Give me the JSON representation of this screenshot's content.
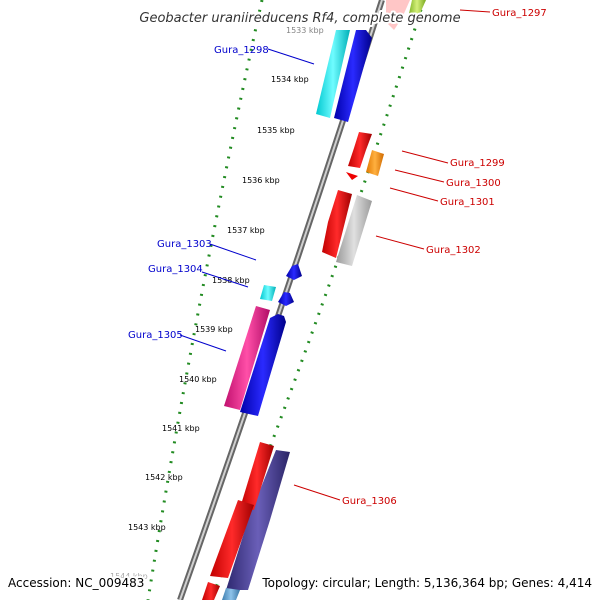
{
  "title": "Geobacter uraniireducens Rf4, complete genome",
  "footer": {
    "accession": "Accession: NC_009483",
    "summary": "Topology: circular; Length: 5,136,364 bp; Genes: 4,414"
  },
  "ticks": [
    "1533 kbp",
    "1534 kbp",
    "1535 kbp",
    "1536 kbp",
    "1537 kbp",
    "1538 kbp",
    "1539 kbp",
    "1540 kbp",
    "1541 kbp",
    "1542 kbp",
    "1543 kbp",
    "1544 kbp"
  ],
  "gene_labels": [
    {
      "id": "Gura_1297",
      "strand": "minus"
    },
    {
      "id": "Gura_1298",
      "strand": "plus"
    },
    {
      "id": "Gura_1299",
      "strand": "minus"
    },
    {
      "id": "Gura_1300",
      "strand": "minus"
    },
    {
      "id": "Gura_1301",
      "strand": "minus"
    },
    {
      "id": "Gura_1302",
      "strand": "minus"
    },
    {
      "id": "Gura_1303",
      "strand": "plus"
    },
    {
      "id": "Gura_1304",
      "strand": "plus"
    },
    {
      "id": "Gura_1305",
      "strand": "plus"
    },
    {
      "id": "Gura_1306",
      "strand": "minus"
    }
  ],
  "colors": {
    "plus_label": "#0000cc",
    "minus_label": "#cc0000",
    "backbone": "#888888",
    "ticks": "#228b22",
    "blue": "#0000ee",
    "cyan": "#00e5ee",
    "red": "#ee0000",
    "orange": "#ff8c00",
    "grey": "#bbbbbb",
    "magenta": "#ee1289",
    "purple": "#483d8b",
    "lime": "#9acd32"
  }
}
